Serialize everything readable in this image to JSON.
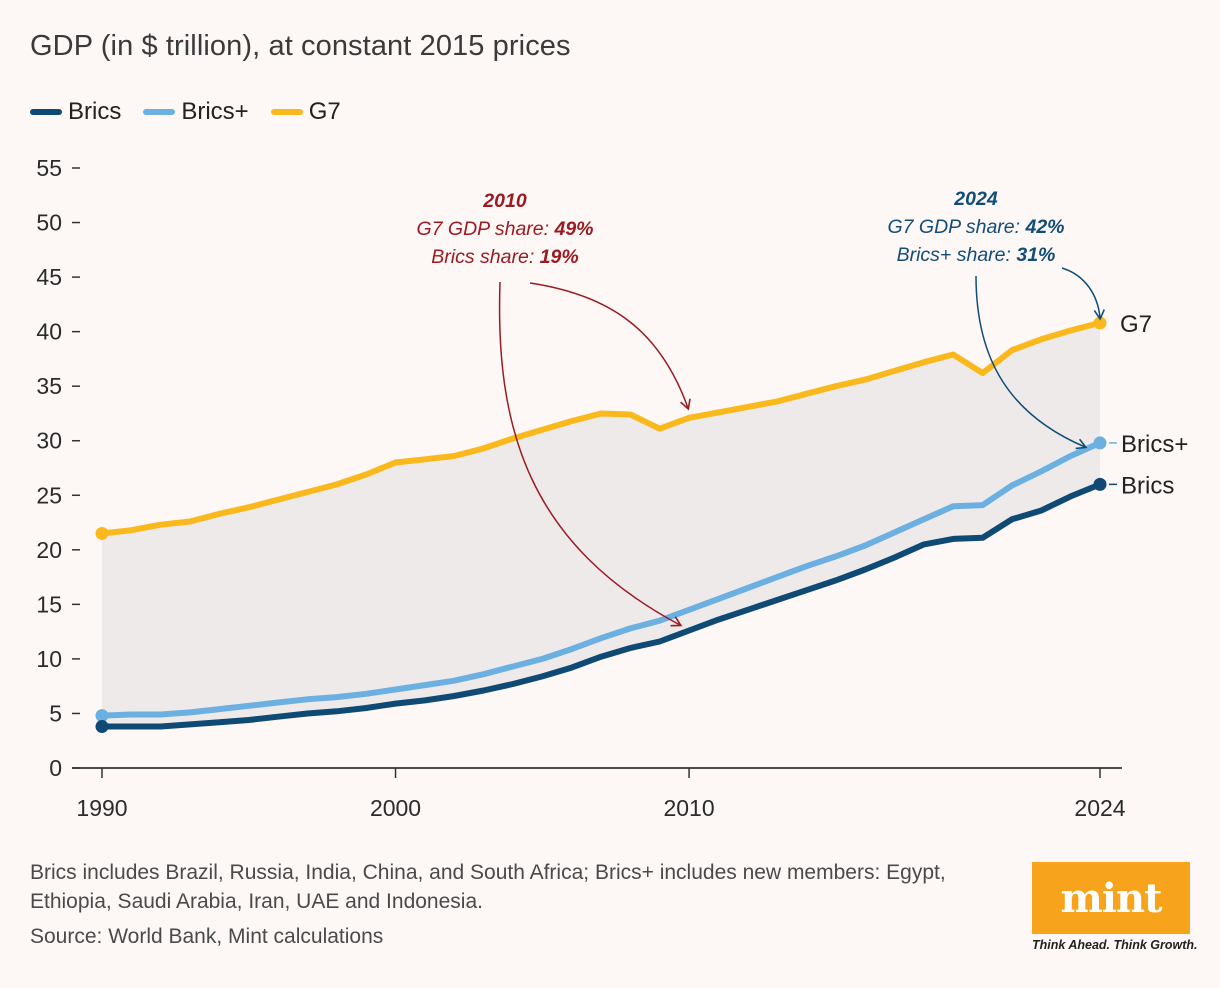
{
  "title": "GDP (in $ trillion), at constant 2015 prices",
  "legend": [
    {
      "label": "Brics",
      "color": "#0f4a75"
    },
    {
      "label": "Brics+",
      "color": "#6cb0e2"
    },
    {
      "label": "G7",
      "color": "#f9b81c"
    }
  ],
  "chart_data": {
    "type": "line",
    "title": "GDP (in $ trillion), at constant 2015 prices",
    "xlabel": "",
    "ylabel": "",
    "xlim": [
      1990,
      2024
    ],
    "ylim": [
      0,
      55
    ],
    "y_ticks": [
      0,
      5,
      10,
      15,
      20,
      25,
      30,
      35,
      40,
      45,
      50,
      55
    ],
    "x_ticks": [
      1990,
      2000,
      2010,
      2024
    ],
    "x": [
      1990,
      1991,
      1992,
      1993,
      1994,
      1995,
      1996,
      1997,
      1998,
      1999,
      2000,
      2001,
      2002,
      2003,
      2004,
      2005,
      2006,
      2007,
      2008,
      2009,
      2010,
      2011,
      2012,
      2013,
      2014,
      2015,
      2016,
      2017,
      2018,
      2019,
      2020,
      2021,
      2022,
      2023,
      2024
    ],
    "series": [
      {
        "name": "G7",
        "color": "#f9b81c",
        "end_label": "G7",
        "values": [
          21.5,
          21.8,
          22.3,
          22.6,
          23.3,
          23.9,
          24.6,
          25.3,
          26.0,
          26.9,
          28.0,
          28.3,
          28.6,
          29.3,
          30.2,
          31.0,
          31.8,
          32.5,
          32.4,
          31.1,
          32.1,
          32.6,
          33.1,
          33.6,
          34.3,
          35.0,
          35.6,
          36.4,
          37.2,
          37.9,
          36.2,
          38.3,
          39.3,
          40.1,
          40.8
        ]
      },
      {
        "name": "Brics+",
        "color": "#6cb0e2",
        "end_label": "Brics+",
        "values": [
          4.8,
          4.9,
          4.9,
          5.1,
          5.4,
          5.7,
          6.0,
          6.3,
          6.5,
          6.8,
          7.2,
          7.6,
          8.0,
          8.6,
          9.3,
          10.0,
          10.9,
          11.9,
          12.8,
          13.5,
          14.5,
          15.5,
          16.5,
          17.5,
          18.5,
          19.4,
          20.4,
          21.6,
          22.8,
          24.0,
          24.1,
          25.9,
          27.2,
          28.6,
          29.8
        ]
      },
      {
        "name": "Brics",
        "color": "#0f4a75",
        "end_label": "Brics",
        "values": [
          3.8,
          3.8,
          3.8,
          4.0,
          4.2,
          4.4,
          4.7,
          5.0,
          5.2,
          5.5,
          5.9,
          6.2,
          6.6,
          7.1,
          7.7,
          8.4,
          9.2,
          10.2,
          11.0,
          11.6,
          12.6,
          13.6,
          14.5,
          15.4,
          16.3,
          17.2,
          18.2,
          19.3,
          20.5,
          21.0,
          21.1,
          22.8,
          23.6,
          24.9,
          26.0
        ]
      }
    ],
    "annotations": [
      {
        "year": "2010",
        "lines": [
          {
            "prefix": "G7 GDP share: ",
            "value": "49%"
          },
          {
            "prefix": "Brics share: ",
            "value": "19%"
          }
        ],
        "color": "#9b1b22"
      },
      {
        "year": "2024",
        "lines": [
          {
            "prefix": "G7 GDP share: ",
            "value": "42%"
          },
          {
            "prefix": "Brics+ share: ",
            "value": "31%"
          }
        ],
        "color": "#124d78"
      }
    ]
  },
  "footnote": "Brics includes Brazil, Russia, India, China, and South Africa; Brics+ includes new members: Egypt, Ethiopia, Saudi Arabia, Iran, UAE and Indonesia.",
  "source": "Source: World Bank, Mint calculations",
  "logo": {
    "name": "mint",
    "tagline": "Think Ahead. Think Growth."
  }
}
